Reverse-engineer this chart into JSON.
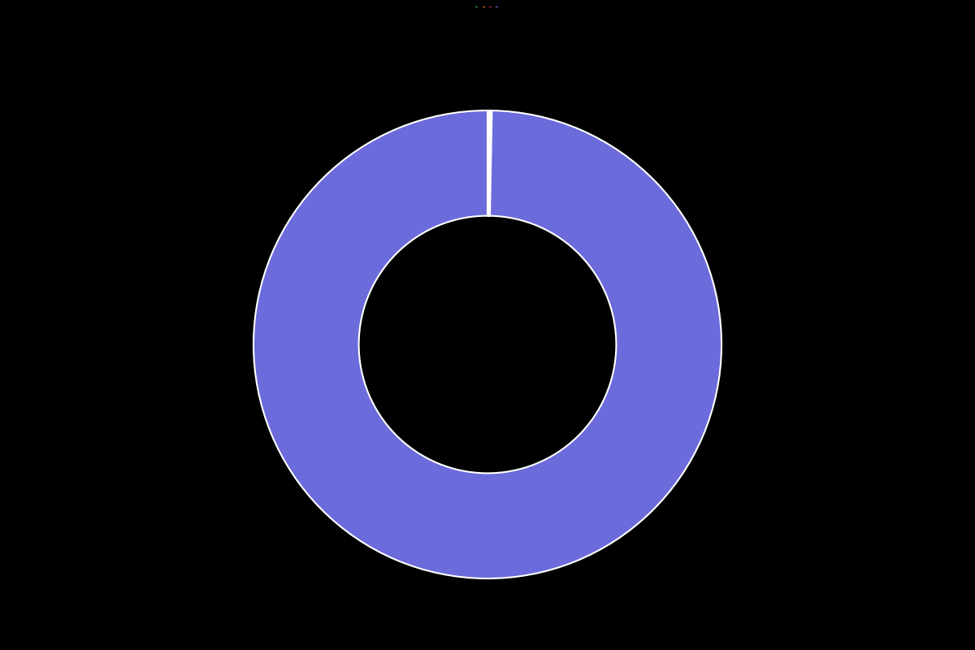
{
  "values": [
    0.1,
    0.1,
    0.1,
    99.7
  ],
  "colors": [
    "#3cb44b",
    "#f58231",
    "#e6194b",
    "#6b6bdb"
  ],
  "legend_labels": [
    "",
    "",
    "",
    ""
  ],
  "background_color": "#000000",
  "wedge_edge_color": "#ffffff",
  "wedge_linewidth": 1.5,
  "donut_width": 0.45,
  "startangle": 90
}
